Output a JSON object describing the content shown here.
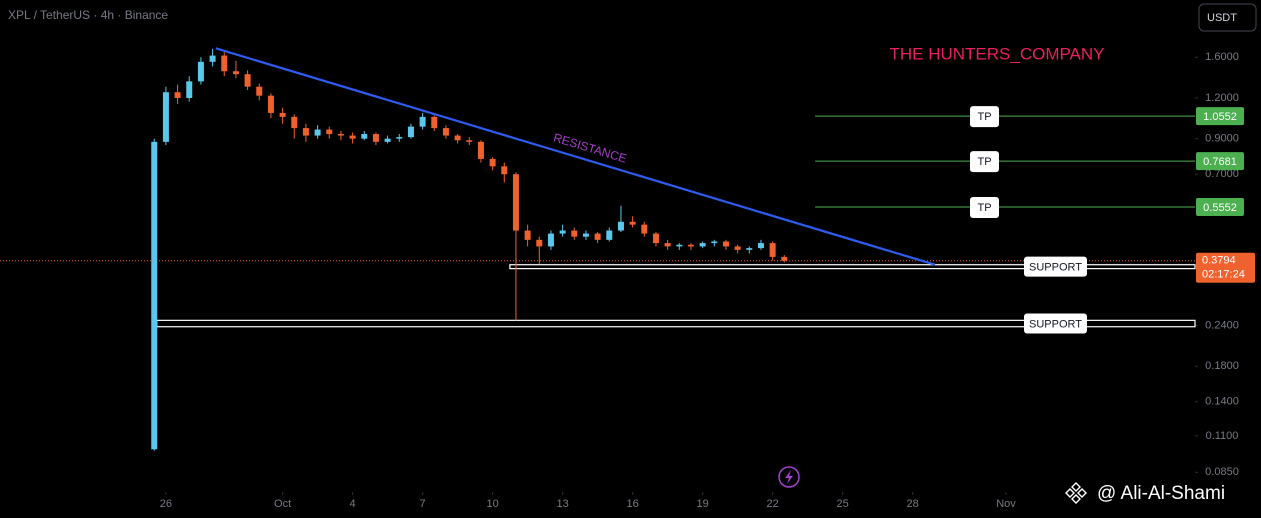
{
  "header": {
    "symbol": "XPL / TetherUS · 4h · Binance",
    "currency": "USDT"
  },
  "watermark": "THE HUNTERS_COMPANY",
  "author": "@ Ali-Al-Shami",
  "chart_data": {
    "type": "candlestick",
    "x": [
      -0.5,
      0,
      0.5,
      1,
      1.5,
      2,
      2.5,
      3,
      3.5,
      4,
      4.5,
      5,
      5.5,
      6,
      6.5,
      7,
      7.5,
      8,
      8.5,
      9,
      9.5,
      10,
      10.5,
      11,
      11.5,
      12,
      12.5,
      13,
      13.5,
      14,
      14.5,
      15,
      15.5,
      16,
      16.5,
      17,
      17.5,
      18,
      18.5,
      19,
      19.5,
      20,
      20.5,
      21,
      21.5,
      22,
      22.5,
      23,
      23.5,
      24,
      24.5,
      25,
      25.5,
      26,
      26.5
    ],
    "open": [
      0.1,
      0.88,
      1.25,
      1.2,
      1.35,
      1.55,
      1.62,
      1.45,
      1.42,
      1.3,
      1.22,
      1.08,
      1.05,
      0.97,
      0.92,
      0.96,
      0.93,
      0.92,
      0.9,
      0.93,
      0.88,
      0.9,
      0.91,
      0.98,
      1.05,
      0.97,
      0.92,
      0.89,
      0.88,
      0.78,
      0.74,
      0.7,
      0.47,
      0.44,
      0.42,
      0.46,
      0.47,
      0.45,
      0.46,
      0.44,
      0.47,
      0.5,
      0.49,
      0.46,
      0.43,
      0.42,
      0.425,
      0.42,
      0.43,
      0.435,
      0.42,
      0.41,
      0.415,
      0.43,
      0.39
    ],
    "high": [
      0.9,
      1.3,
      1.32,
      1.4,
      1.6,
      1.7,
      1.66,
      1.56,
      1.46,
      1.33,
      1.24,
      1.12,
      1.07,
      1.0,
      0.99,
      0.98,
      0.95,
      0.94,
      0.95,
      0.94,
      0.92,
      0.93,
      1.0,
      1.08,
      1.06,
      0.99,
      0.93,
      0.91,
      0.89,
      0.79,
      0.76,
      0.71,
      0.49,
      0.45,
      0.47,
      0.49,
      0.48,
      0.47,
      0.465,
      0.48,
      0.56,
      0.52,
      0.5,
      0.465,
      0.44,
      0.43,
      0.43,
      0.435,
      0.44,
      0.44,
      0.425,
      0.42,
      0.44,
      0.435,
      0.395
    ],
    "low": [
      0.099,
      0.86,
      1.15,
      1.17,
      1.32,
      1.5,
      1.4,
      1.38,
      1.27,
      1.18,
      1.04,
      1.0,
      0.9,
      0.88,
      0.9,
      0.9,
      0.89,
      0.87,
      0.89,
      0.86,
      0.87,
      0.88,
      0.9,
      0.96,
      0.95,
      0.9,
      0.87,
      0.86,
      0.76,
      0.72,
      0.66,
      0.249,
      0.42,
      0.37,
      0.41,
      0.45,
      0.44,
      0.44,
      0.43,
      0.435,
      0.465,
      0.48,
      0.45,
      0.42,
      0.41,
      0.41,
      0.41,
      0.415,
      0.42,
      0.41,
      0.4,
      0.4,
      0.41,
      0.38,
      0.375
    ],
    "close": [
      0.88,
      1.25,
      1.2,
      1.35,
      1.55,
      1.62,
      1.45,
      1.42,
      1.3,
      1.22,
      1.08,
      1.05,
      0.97,
      0.92,
      0.96,
      0.93,
      0.92,
      0.9,
      0.93,
      0.88,
      0.9,
      0.91,
      0.98,
      1.05,
      0.97,
      0.92,
      0.89,
      0.88,
      0.78,
      0.74,
      0.7,
      0.47,
      0.44,
      0.42,
      0.46,
      0.47,
      0.45,
      0.46,
      0.44,
      0.47,
      0.5,
      0.49,
      0.46,
      0.43,
      0.42,
      0.425,
      0.42,
      0.43,
      0.435,
      0.42,
      0.41,
      0.415,
      0.43,
      0.39,
      0.3794
    ],
    "up_color": "#5ac8ea",
    "down_color": "#f0622d",
    "xlim": [
      -7.11,
      44.1
    ],
    "xticks": [
      {
        "value": 0,
        "label": "26"
      },
      {
        "value": 5,
        "label": "Oct"
      },
      {
        "value": 8,
        "label": "4"
      },
      {
        "value": 11,
        "label": "7"
      },
      {
        "value": 14,
        "label": "10"
      },
      {
        "value": 17,
        "label": "13"
      },
      {
        "value": 20,
        "label": "16"
      },
      {
        "value": 23,
        "label": "19"
      },
      {
        "value": 26,
        "label": "22"
      },
      {
        "value": 29,
        "label": "25"
      },
      {
        "value": 32,
        "label": "28"
      },
      {
        "value": 36,
        "label": "Nov"
      }
    ],
    "ylim": [
      0.075,
      2.4
    ],
    "log_scale": true,
    "yticks": [
      {
        "value": 1.6,
        "label": "1.6000"
      },
      {
        "value": 1.2,
        "label": "1.2000"
      },
      {
        "value": 0.9,
        "label": "0.9000"
      },
      {
        "value": 0.7,
        "label": "0.7000"
      },
      {
        "value": 0.24,
        "label": "0.2400"
      },
      {
        "value": 0.18,
        "label": "0.1800"
      },
      {
        "value": 0.14,
        "label": "0.1400"
      },
      {
        "value": 0.11,
        "label": "0.1100"
      },
      {
        "value": 0.085,
        "label": "0.0850"
      }
    ],
    "resistance": {
      "label": "RESISTANCE",
      "x": [
        2.14,
        32.96
      ],
      "y": [
        1.705,
        0.369
      ],
      "color": "#2f5cf0",
      "label_color": "#a33fc8"
    },
    "targets": [
      {
        "label": "TP",
        "value": 1.0552,
        "x_start": 27.82
      },
      {
        "label": "TP",
        "value": 0.7681,
        "x_start": 27.82
      },
      {
        "label": "TP",
        "value": 0.5552,
        "x_start": 27.82
      }
    ],
    "target_color": "#4caf50",
    "supports": [
      {
        "label": "SUPPORT",
        "top": 0.369,
        "bottom": 0.359,
        "x_start": 14.74
      },
      {
        "label": "SUPPORT",
        "top": 0.249,
        "bottom": 0.238,
        "x_start": -0.39
      }
    ],
    "last_price": {
      "value": 0.3794,
      "countdown": "02:17:24",
      "color": "#f0622d"
    }
  }
}
